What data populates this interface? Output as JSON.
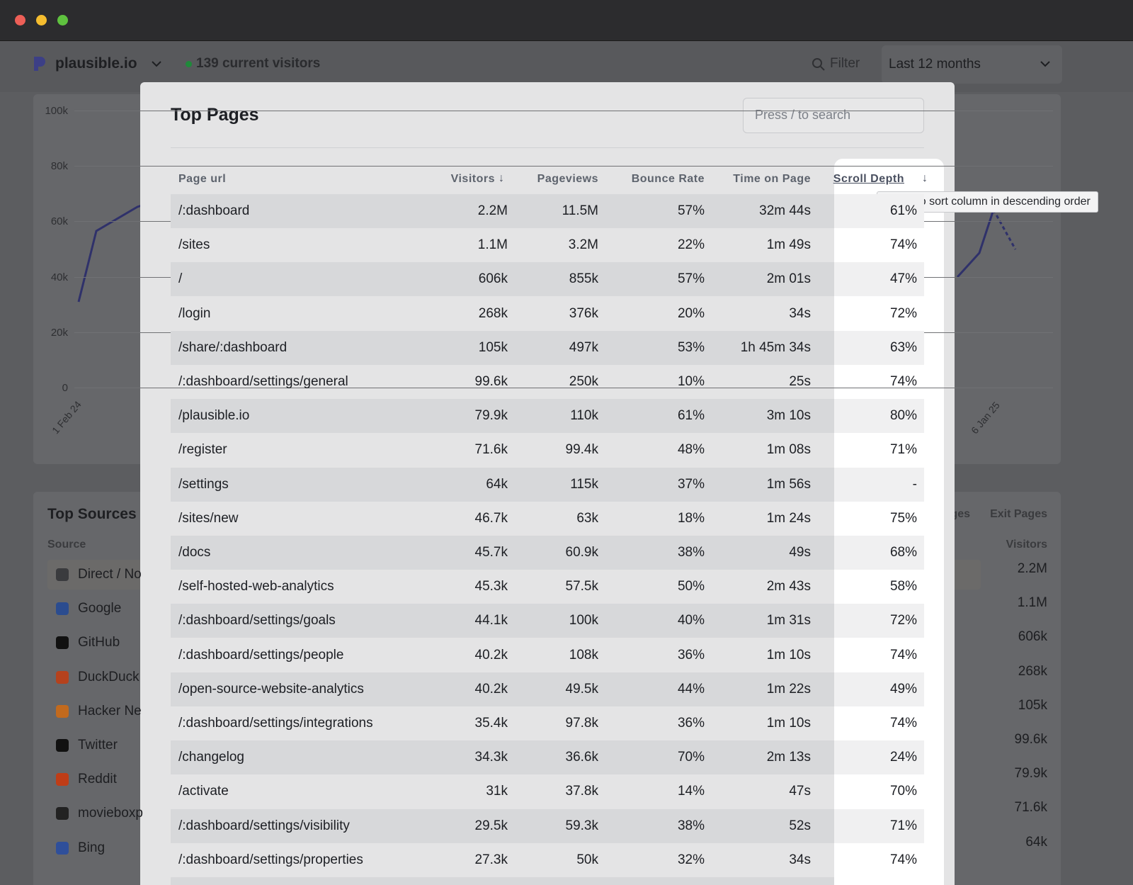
{
  "header": {
    "site": "plausible.io",
    "current_visitors": "139 current visitors",
    "filter": "Filter",
    "period": "Last 12 months"
  },
  "chart": {
    "yticks": [
      "100k",
      "80k",
      "60k",
      "40k",
      "20k",
      "0"
    ],
    "xlabels": [
      "1 Feb 24",
      "6 Jan 25"
    ]
  },
  "sources": {
    "title": "Top Sources",
    "column": "Source",
    "tabs": [
      "Pages",
      "Exit Pages"
    ],
    "value_column": "Visitors",
    "items": [
      "Direct / No",
      "Google",
      "GitHub",
      "DuckDuck",
      "Hacker Ne",
      "Twitter",
      "Reddit",
      "movieboxp",
      "Bing"
    ],
    "values": [
      "2.2M",
      "1.1M",
      "606k",
      "268k",
      "105k",
      "99.6k",
      "79.9k",
      "71.6k",
      "64k"
    ]
  },
  "modal": {
    "title": "Top Pages",
    "search_placeholder": "Press / to search",
    "columns": [
      "Page url",
      "Visitors",
      "Pageviews",
      "Bounce Rate",
      "Time on Page",
      "Scroll Depth"
    ],
    "tooltip": "Press to sort column in descending order",
    "rows": [
      [
        "/:dashboard",
        "2.2M",
        "11.5M",
        "57%",
        "32m 44s",
        "61%"
      ],
      [
        "/sites",
        "1.1M",
        "3.2M",
        "22%",
        "1m 49s",
        "74%"
      ],
      [
        "/",
        "606k",
        "855k",
        "57%",
        "2m 01s",
        "47%"
      ],
      [
        "/login",
        "268k",
        "376k",
        "20%",
        "34s",
        "72%"
      ],
      [
        "/share/:dashboard",
        "105k",
        "497k",
        "53%",
        "1h 45m 34s",
        "63%"
      ],
      [
        "/:dashboard/settings/general",
        "99.6k",
        "250k",
        "10%",
        "25s",
        "74%"
      ],
      [
        "/plausible.io",
        "79.9k",
        "110k",
        "61%",
        "3m 10s",
        "80%"
      ],
      [
        "/register",
        "71.6k",
        "99.4k",
        "48%",
        "1m 08s",
        "71%"
      ],
      [
        "/settings",
        "64k",
        "115k",
        "37%",
        "1m 56s",
        "-"
      ],
      [
        "/sites/new",
        "46.7k",
        "63k",
        "18%",
        "1m 24s",
        "75%"
      ],
      [
        "/docs",
        "45.7k",
        "60.9k",
        "38%",
        "49s",
        "68%"
      ],
      [
        "/self-hosted-web-analytics",
        "45.3k",
        "57.5k",
        "50%",
        "2m 43s",
        "58%"
      ],
      [
        "/:dashboard/settings/goals",
        "44.1k",
        "100k",
        "40%",
        "1m 31s",
        "72%"
      ],
      [
        "/:dashboard/settings/people",
        "40.2k",
        "108k",
        "36%",
        "1m 10s",
        "74%"
      ],
      [
        "/open-source-website-analytics",
        "40.2k",
        "49.5k",
        "44%",
        "1m 22s",
        "49%"
      ],
      [
        "/:dashboard/settings/integrations",
        "35.4k",
        "97.8k",
        "36%",
        "1m 10s",
        "74%"
      ],
      [
        "/changelog",
        "34.3k",
        "36.6k",
        "70%",
        "2m 13s",
        "24%"
      ],
      [
        "/activate",
        "31k",
        "37.8k",
        "14%",
        "47s",
        "70%"
      ],
      [
        "/:dashboard/settings/visibility",
        "29.5k",
        "59.3k",
        "38%",
        "52s",
        "71%"
      ],
      [
        "/:dashboard/settings/properties",
        "27.3k",
        "50k",
        "32%",
        "34s",
        "74%"
      ]
    ]
  }
}
